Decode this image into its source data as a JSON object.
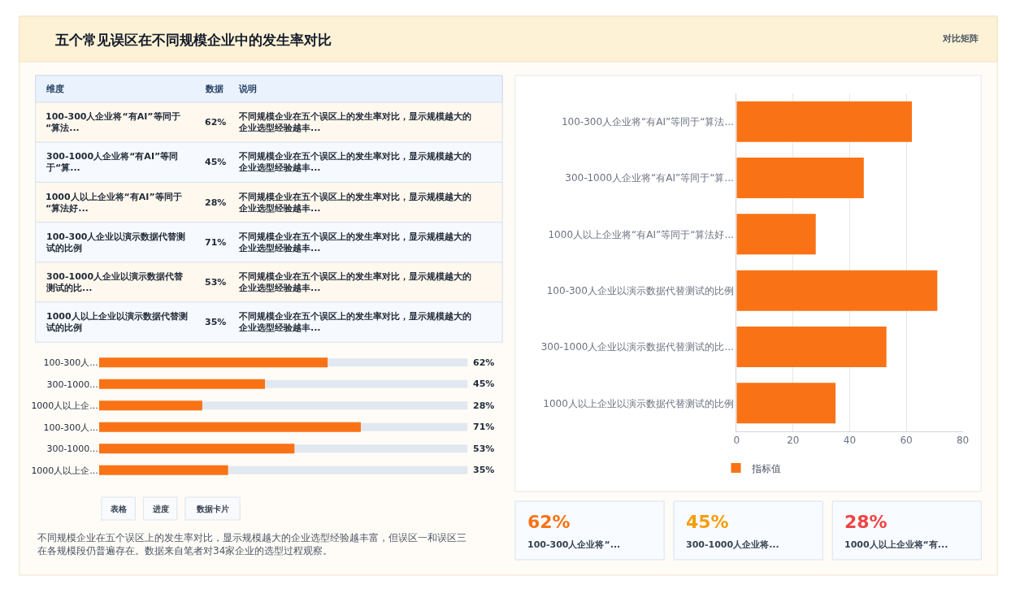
{
  "chart_data": [
    {
      "type": "other",
      "title": "五个常见误区在不同规模企业中的发生率对比",
      "annotations": [
        "对比矩阵"
      ]
    },
    {
      "type": "other",
      "annotations": [
        "维度",
        "数据",
        "说明",
        "100-300人企业将“有AI”等同于“算法...",
        "62%",
        "不同规模企业在五个误区上的发生率对比，显示规模越大的企业选型经验越丰...",
        "300-1000人企业将“有AI”等同于“算...",
        "45%",
        "不同规模企业在五个误区上的发生率对比，显示规模越大的企业选型经验越丰...",
        "1000人以上企业将“有AI”等同于“算法好...",
        "28%",
        "不同规模企业在五个误区上的发生率对比，显示规模越大的企业选型经验越丰...",
        "100-300人企业以演示数据代替测试的比例",
        "71%",
        "不同规模企业在五个误区上的发生率对比，显示规模越大的企业选型经验越丰...",
        "300-1000人企业以演示数据代替测试的比...",
        "53%",
        "不同规模企业在五个误区上的发生率对比，显示规模越大的企业选型经验越丰...",
        "1000人以上企业以演示数据代替测试的比例",
        "35%",
        "不同规模企业在五个误区上的发生率对比，显示规模越大的企业选型经验越丰..."
      ]
    },
    {
      "type": "bar",
      "orientation": "horizontal",
      "categories": [
        "100-300人...",
        "300-1000...",
        "1000人以上企...",
        "100-300人...",
        "300-1000...",
        "1000人以上企..."
      ],
      "values": [
        62,
        45,
        28,
        71,
        53,
        35
      ],
      "value_labels": [
        "62%",
        "45%",
        "28%",
        "71%",
        "53%",
        "35%"
      ],
      "color": "#f97316",
      "xlim": [
        0,
        100
      ],
      "tick_labels": "y",
      "annotations": [
        "表格",
        "进度",
        "数据卡片",
        "不同规模企业在五个误区上的发生率对比，显示规模越大的企业选型经验越丰富，但误区一和误区三在各规模段仍普遍存在。数据来自笔者对34家企业的选型过程观察。"
      ]
    },
    {
      "type": "bar",
      "orientation": "horizontal",
      "categories": [
        "100-300人企业将“有AI”等同于“算法...",
        "300-1000人企业将“有AI”等同于“算...",
        "1000人以上企业将“有AI”等同于“算法好...",
        "100-300人企业以演示数据代替测试的比例",
        "300-1000人企业以演示数据代替测试的比...",
        "1000人以上企业以演示数据代替测试的比例"
      ],
      "series": [
        {
          "name": "指标值",
          "color": "#f97316",
          "values": [
            62,
            45,
            28,
            71,
            53,
            35
          ]
        }
      ],
      "xlim": [
        0,
        80
      ],
      "xticks": [
        0,
        20,
        40,
        60,
        80
      ],
      "grid": true,
      "legend": "bottom"
    },
    {
      "type": "other",
      "annotations": [
        "62%",
        "100-300人企业将“...",
        "45%",
        "300-1000人企业将...",
        "28%",
        "1000人以上企业将“有..."
      ],
      "colors": [
        "#f97316",
        "#f59e0b",
        "#ef4444"
      ]
    }
  ]
}
